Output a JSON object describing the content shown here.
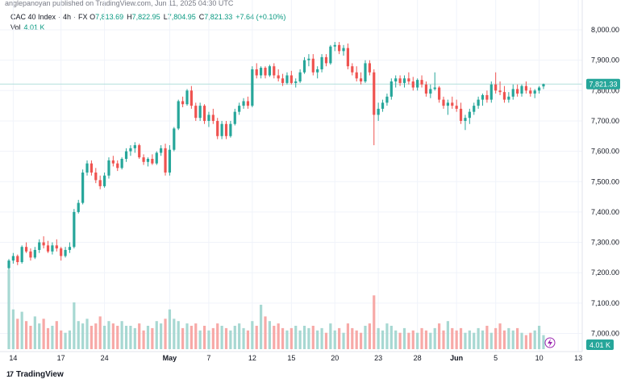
{
  "header": {
    "text": "anglepanoyan published on TradingView.com, Jun 11, 2025 04:30 UTC"
  },
  "legend": {
    "symbol": "CAC 40 Index",
    "timeframe": "4h",
    "exchange": "FX",
    "open_key": "O",
    "open": "7,813.69",
    "high_key": "H",
    "high": "7,822.95",
    "low_key": "L",
    "low": "7,804.95",
    "close_key": "C",
    "close": "7,821.33",
    "change": "+7.64 (+0.10%)",
    "vol_label": "Vol",
    "vol_value": "4.01 K"
  },
  "price_badge": "7,821.33",
  "vol_badge": "4.01 K",
  "footer": {
    "brand": "TradingView",
    "mark": "17"
  },
  "colors": {
    "up": "#26a69a",
    "down": "#ef5350",
    "vol_up": "#a7d8d2",
    "vol_down": "#f7a9a7",
    "last_price_line": "#b2dfdb",
    "grid": "#f0f3fa"
  },
  "chart_data": {
    "type": "candlestick",
    "title": "CAC 40 Index · 4h · FX",
    "y_ticks": [
      "8,000.00",
      "7,900.00",
      "7,800.00",
      "7,700.00",
      "7,600.00",
      "7,500.00",
      "7,400.00",
      "7,300.00",
      "7,200.00",
      "7,100.00",
      "7,000.00"
    ],
    "y_tick_values": [
      8000,
      7900,
      7800,
      7700,
      7600,
      7500,
      7400,
      7300,
      7200,
      7100,
      7000
    ],
    "ylim": [
      6965,
      8035
    ],
    "x_ticks": [
      {
        "label": "14",
        "bar": 1,
        "bold": false
      },
      {
        "label": "17",
        "bar": 12,
        "bold": false
      },
      {
        "label": "24",
        "bar": 22,
        "bold": false
      },
      {
        "label": "May",
        "bar": 37,
        "bold": true
      },
      {
        "label": "7",
        "bar": 46,
        "bold": false
      },
      {
        "label": "12",
        "bar": 56,
        "bold": false
      },
      {
        "label": "15",
        "bar": 65,
        "bold": false
      },
      {
        "label": "20",
        "bar": 75,
        "bold": false
      },
      {
        "label": "23",
        "bar": 85,
        "bold": false
      },
      {
        "label": "28",
        "bar": 94,
        "bold": false
      },
      {
        "label": "Jun",
        "bar": 103,
        "bold": true
      },
      {
        "label": "5",
        "bar": 112,
        "bold": false
      },
      {
        "label": "10",
        "bar": 122,
        "bold": false
      },
      {
        "label": "13",
        "bar": 131,
        "bold": false
      }
    ],
    "last_price": 7821.33,
    "candles": [
      [
        7215,
        7245,
        7210,
        7240,
        6.8
      ],
      [
        7240,
        7265,
        7230,
        7255,
        3.4
      ],
      [
        7255,
        7260,
        7225,
        7235,
        2.6
      ],
      [
        7235,
        7290,
        7230,
        7285,
        3.2
      ],
      [
        7285,
        7300,
        7265,
        7270,
        2.4
      ],
      [
        7270,
        7280,
        7240,
        7250,
        2.0
      ],
      [
        7250,
        7285,
        7245,
        7275,
        2.8
      ],
      [
        7275,
        7310,
        7265,
        7300,
        2.2
      ],
      [
        7300,
        7320,
        7280,
        7290,
        2.6
      ],
      [
        7290,
        7305,
        7265,
        7270,
        1.8
      ],
      [
        7270,
        7300,
        7260,
        7290,
        2.0
      ],
      [
        7290,
        7310,
        7270,
        7280,
        2.4
      ],
      [
        7280,
        7285,
        7240,
        7255,
        1.6
      ],
      [
        7255,
        7285,
        7250,
        7275,
        1.4
      ],
      [
        7275,
        7300,
        7265,
        7285,
        1.6
      ],
      [
        7285,
        7410,
        7280,
        7400,
        4.0
      ],
      [
        7400,
        7440,
        7395,
        7430,
        2.4
      ],
      [
        7430,
        7540,
        7425,
        7530,
        2.2
      ],
      [
        7530,
        7570,
        7520,
        7560,
        2.6
      ],
      [
        7560,
        7570,
        7520,
        7530,
        2.0
      ],
      [
        7530,
        7545,
        7495,
        7505,
        2.2
      ],
      [
        7505,
        7520,
        7475,
        7485,
        2.8
      ],
      [
        7485,
        7530,
        7480,
        7520,
        2.0
      ],
      [
        7520,
        7580,
        7510,
        7570,
        2.4
      ],
      [
        7570,
        7585,
        7550,
        7560,
        2.2
      ],
      [
        7560,
        7570,
        7535,
        7545,
        2.0
      ],
      [
        7545,
        7580,
        7540,
        7575,
        2.4
      ],
      [
        7575,
        7610,
        7565,
        7600,
        2.0
      ],
      [
        7600,
        7620,
        7585,
        7610,
        2.0
      ],
      [
        7610,
        7630,
        7595,
        7620,
        1.8
      ],
      [
        7620,
        7625,
        7575,
        7580,
        2.2
      ],
      [
        7580,
        7590,
        7555,
        7565,
        1.6
      ],
      [
        7565,
        7580,
        7550,
        7575,
        2.0
      ],
      [
        7575,
        7590,
        7555,
        7560,
        1.8
      ],
      [
        7560,
        7600,
        7555,
        7595,
        2.4
      ],
      [
        7595,
        7620,
        7585,
        7610,
        2.2
      ],
      [
        7610,
        7625,
        7520,
        7530,
        2.6
      ],
      [
        7530,
        7620,
        7520,
        7605,
        3.4
      ],
      [
        7605,
        7680,
        7600,
        7675,
        2.6
      ],
      [
        7675,
        7770,
        7670,
        7765,
        2.4
      ],
      [
        7765,
        7780,
        7745,
        7755,
        1.8
      ],
      [
        7755,
        7805,
        7750,
        7800,
        2.2
      ],
      [
        7800,
        7815,
        7740,
        7750,
        2.0
      ],
      [
        7750,
        7760,
        7700,
        7710,
        2.2
      ],
      [
        7710,
        7760,
        7700,
        7750,
        1.6
      ],
      [
        7750,
        7755,
        7690,
        7700,
        2.0
      ],
      [
        7700,
        7730,
        7680,
        7720,
        1.6
      ],
      [
        7720,
        7740,
        7690,
        7700,
        1.8
      ],
      [
        7700,
        7710,
        7640,
        7650,
        2.2
      ],
      [
        7650,
        7700,
        7640,
        7690,
        2.0
      ],
      [
        7690,
        7700,
        7640,
        7650,
        1.8
      ],
      [
        7650,
        7700,
        7645,
        7690,
        1.6
      ],
      [
        7690,
        7740,
        7685,
        7730,
        2.0
      ],
      [
        7730,
        7760,
        7720,
        7750,
        2.2
      ],
      [
        7750,
        7775,
        7740,
        7765,
        1.8
      ],
      [
        7765,
        7780,
        7740,
        7750,
        1.6
      ],
      [
        7750,
        7880,
        7745,
        7870,
        2.4
      ],
      [
        7870,
        7890,
        7840,
        7850,
        2.0
      ],
      [
        7850,
        7880,
        7840,
        7875,
        3.8
      ],
      [
        7875,
        7880,
        7840,
        7850,
        2.8
      ],
      [
        7850,
        7885,
        7845,
        7880,
        2.4
      ],
      [
        7880,
        7890,
        7840,
        7850,
        2.0
      ],
      [
        7850,
        7870,
        7830,
        7840,
        2.2
      ],
      [
        7840,
        7855,
        7815,
        7825,
        1.8
      ],
      [
        7825,
        7860,
        7820,
        7850,
        1.6
      ],
      [
        7850,
        7865,
        7820,
        7825,
        1.8
      ],
      [
        7825,
        7840,
        7810,
        7830,
        2.0
      ],
      [
        7830,
        7870,
        7825,
        7860,
        1.6
      ],
      [
        7860,
        7910,
        7855,
        7900,
        2.0
      ],
      [
        7900,
        7920,
        7880,
        7905,
        1.8
      ],
      [
        7905,
        7920,
        7850,
        7860,
        2.0
      ],
      [
        7860,
        7880,
        7840,
        7870,
        1.6
      ],
      [
        7870,
        7920,
        7860,
        7910,
        1.8
      ],
      [
        7910,
        7920,
        7880,
        7890,
        1.4
      ],
      [
        7890,
        7950,
        7885,
        7945,
        2.2
      ],
      [
        7945,
        7960,
        7930,
        7950,
        1.6
      ],
      [
        7950,
        7960,
        7920,
        7930,
        1.8
      ],
      [
        7930,
        7950,
        7915,
        7940,
        1.4
      ],
      [
        7940,
        7955,
        7870,
        7880,
        2.2
      ],
      [
        7880,
        7890,
        7850,
        7860,
        1.8
      ],
      [
        7860,
        7880,
        7830,
        7840,
        1.6
      ],
      [
        7840,
        7860,
        7820,
        7830,
        1.4
      ],
      [
        7830,
        7900,
        7825,
        7890,
        2.0
      ],
      [
        7890,
        7900,
        7850,
        7860,
        2.2
      ],
      [
        7860,
        7870,
        7620,
        7720,
        4.6
      ],
      [
        7720,
        7760,
        7700,
        7740,
        1.8
      ],
      [
        7740,
        7770,
        7730,
        7760,
        1.6
      ],
      [
        7760,
        7790,
        7750,
        7780,
        2.2
      ],
      [
        7780,
        7840,
        7770,
        7830,
        2.0
      ],
      [
        7830,
        7850,
        7810,
        7840,
        1.6
      ],
      [
        7840,
        7850,
        7815,
        7825,
        1.4
      ],
      [
        7825,
        7850,
        7810,
        7840,
        1.8
      ],
      [
        7840,
        7860,
        7820,
        7830,
        1.4
      ],
      [
        7830,
        7845,
        7800,
        7810,
        1.6
      ],
      [
        7810,
        7840,
        7800,
        7835,
        1.4
      ],
      [
        7835,
        7850,
        7810,
        7820,
        1.8
      ],
      [
        7820,
        7830,
        7780,
        7790,
        1.6
      ],
      [
        7790,
        7820,
        7775,
        7805,
        1.4
      ],
      [
        7805,
        7860,
        7800,
        7810,
        1.8
      ],
      [
        7810,
        7815,
        7760,
        7770,
        2.2
      ],
      [
        7770,
        7780,
        7740,
        7750,
        1.6
      ],
      [
        7750,
        7770,
        7720,
        7760,
        2.4
      ],
      [
        7760,
        7780,
        7740,
        7750,
        1.8
      ],
      [
        7750,
        7770,
        7730,
        7740,
        1.6
      ],
      [
        7740,
        7760,
        7690,
        7700,
        1.8
      ],
      [
        7700,
        7720,
        7670,
        7710,
        1.4
      ],
      [
        7710,
        7740,
        7690,
        7730,
        1.6
      ],
      [
        7730,
        7760,
        7720,
        7750,
        1.4
      ],
      [
        7750,
        7780,
        7740,
        7770,
        1.8
      ],
      [
        7770,
        7790,
        7750,
        7785,
        1.6
      ],
      [
        7785,
        7800,
        7760,
        7770,
        2.0
      ],
      [
        7770,
        7830,
        7760,
        7820,
        1.4
      ],
      [
        7820,
        7860,
        7790,
        7800,
        1.8
      ],
      [
        7800,
        7830,
        7785,
        7795,
        2.2
      ],
      [
        7795,
        7815,
        7760,
        7770,
        1.6
      ],
      [
        7770,
        7795,
        7760,
        7780,
        1.8
      ],
      [
        7780,
        7820,
        7770,
        7805,
        1.6
      ],
      [
        7805,
        7820,
        7780,
        7790,
        1.8
      ],
      [
        7790,
        7820,
        7780,
        7815,
        1.4
      ],
      [
        7815,
        7830,
        7790,
        7800,
        1.2
      ],
      [
        7800,
        7810,
        7780,
        7790,
        1.4
      ],
      [
        7790,
        7805,
        7775,
        7800,
        1.6
      ],
      [
        7800,
        7815,
        7790,
        7810,
        2.0
      ],
      [
        7813.69,
        7822.95,
        7804.95,
        7821.33,
        1.2
      ]
    ]
  }
}
